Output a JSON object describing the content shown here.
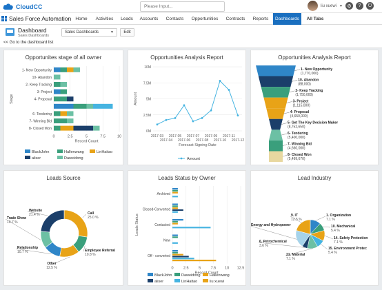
{
  "topbar": {
    "logo": "CloudCC",
    "search_placeholder": "Please Input...",
    "user_name": "liu xuewi"
  },
  "nav": {
    "app_name": "Sales Force Automation",
    "tabs": [
      "Home",
      "Activities",
      "Leads",
      "Accounts",
      "Contacts",
      "Opportunities",
      "Contracts",
      "Reports",
      "Dashboards",
      "All Tabs"
    ],
    "active": "Dashboards"
  },
  "dashboard": {
    "title": "Dashboard",
    "subtitle": "Sales Dashboards",
    "select_value": "Sales Dashboards",
    "edit_label": "Edit",
    "back_link": "<< Go to the dashboard list"
  },
  "colors": {
    "blue": "#2f86c8",
    "teal": "#3a9f7c",
    "orange": "#e8a317",
    "navy": "#1b3f6a",
    "green": "#6cc0a4",
    "light_blue": "#46b4e1",
    "nav_active": "#1a6fbf"
  },
  "panels": {
    "p1": {
      "title": "Opportunites stage of all owner"
    },
    "p2": {
      "title": "Opportunities Analysis Report"
    },
    "p3": {
      "title": "Opportunities Analysis Report"
    },
    "p4": {
      "title": "Leads Source"
    },
    "p5": {
      "title": "Leads Status by Owner"
    },
    "p6": {
      "title": "Lead Industry"
    }
  },
  "chart_data": [
    {
      "type": "bar",
      "orientation": "horizontal",
      "stacked": true,
      "title": "Opportunites stage of all owner",
      "xlabel": "Record Count",
      "ylabel": "Stage",
      "xlim": [
        0,
        10
      ],
      "xticks": [
        "0",
        "2.5",
        "5",
        "7.5",
        "10"
      ],
      "categories": [
        "1- New Opportunity",
        "10- Abandon",
        "2- Keep Tracking",
        "3- Project",
        "4- Proposal",
        "",
        "6- Tendering",
        "7- Winning Bid",
        "8- Closed Won"
      ],
      "series": [
        {
          "name": "BlackJohn",
          "values": [
            1,
            0,
            0,
            1,
            0,
            3,
            0,
            0,
            0
          ]
        },
        {
          "name": "Hallenwang",
          "values": [
            1,
            0,
            1,
            1,
            2,
            2,
            1,
            2,
            1
          ]
        },
        {
          "name": "LinHaitao",
          "values": [
            1,
            0,
            0,
            0,
            0,
            0,
            1,
            0,
            2
          ]
        },
        {
          "name": "aliser",
          "values": [
            0,
            0,
            0,
            0,
            1,
            0,
            0,
            0,
            3
          ]
        },
        {
          "name": "Daweidong",
          "values": [
            1,
            1,
            1,
            0,
            0,
            1,
            1,
            1,
            1
          ]
        }
      ],
      "extra_series": [
        {
          "name": "",
          "values": [
            0,
            0,
            0,
            0,
            0,
            3,
            0,
            0,
            0
          ]
        }
      ],
      "legend": "bottom"
    },
    {
      "type": "line",
      "title": "Opportunities Analysis Report",
      "xlabel": "Forecast Signing Date",
      "ylabel": "Amount",
      "x": [
        "2017-03",
        "2017-04",
        "2017-05",
        "2017-06",
        "2017-07",
        "2017-08",
        "2017-09",
        "2017-10",
        "2017-11",
        "2017-12"
      ],
      "xticks": [
        "2017-03",
        "2017-05",
        "2017-07",
        "2017-09",
        "2017-11",
        "2017-04",
        "2017-06",
        "2017-08",
        "2017-10",
        "2017-12"
      ],
      "series": [
        {
          "name": "Amount",
          "values": [
            1000000,
            1700000,
            2000000,
            4000000,
            1500000,
            2000000,
            3200000,
            7800000,
            6400000,
            2400000
          ]
        }
      ],
      "yticks": [
        "0M",
        "2.5M",
        "5M",
        "7.5M",
        "10M"
      ],
      "ylim": [
        0,
        10000000
      ],
      "legend": "bottom"
    },
    {
      "type": "funnel",
      "title": "Opportunities Analysis Report",
      "stages": [
        {
          "label": "1- New Opportunity",
          "value": "(1,770,000)",
          "color": "#2f86c8"
        },
        {
          "label": "10- Abandon",
          "value": "(88,000)",
          "color": "#1b3f6a"
        },
        {
          "label": "2- Keep Tracking",
          "value": "(1,750,000)",
          "color": "#3a9f7c"
        },
        {
          "label": "3- Project",
          "value": "(1,115,000)",
          "color": "#e8a317"
        },
        {
          "label": "4- Proposal",
          "value": "(4,650,000)",
          "color": "#e8a317"
        },
        {
          "label": "5- Get The Key Decision Maker",
          "value": "(8,752,650)",
          "color": "#1b3f6a"
        },
        {
          "label": "6- Tendering",
          "value": "(5,400,000)",
          "color": "#6cc0a4"
        },
        {
          "label": "7- Winning Bid",
          "value": "(4,660,000)",
          "color": "#3a9f7c"
        },
        {
          "label": "8- Closed Won",
          "value": "(5,499,670)",
          "color": "#e8d8a0"
        }
      ]
    },
    {
      "type": "pie",
      "donut": true,
      "title": "Leads Source",
      "slices": [
        {
          "label": "Call",
          "pct": "25.0 %",
          "value": 25.0,
          "color": "#e8a317"
        },
        {
          "label": "Employee Referral",
          "pct": "10.8 %",
          "value": 10.8,
          "color": "#3a9f7c"
        },
        {
          "label": "Other",
          "pct": "12.5 %",
          "value": 12.5,
          "color": "#e8a317"
        },
        {
          "label": "Relationship",
          "pct": "10.7 %",
          "value": 10.7,
          "color": "#2f86c8"
        },
        {
          "label": "Trade Show",
          "pct": "10.7 %",
          "value": 10.7,
          "color": "#6cc0a4"
        },
        {
          "label": "Website",
          "pct": "21.4 %",
          "value": 21.4,
          "color": "#1b3f6a"
        }
      ]
    },
    {
      "type": "bar",
      "orientation": "horizontal",
      "title": "Leads Status by Owner",
      "xlabel": "Record Count",
      "ylabel": "Leads Status",
      "xlim": [
        0,
        12.5
      ],
      "xticks": [
        "0",
        "2.5",
        "5",
        "7.5",
        "10",
        "12.5"
      ],
      "categories": [
        "Archived",
        "Closed-Converted",
        "Contacted",
        "New",
        "Off - converted"
      ],
      "series": [
        {
          "name": "BlackJohn",
          "values": [
            1,
            1,
            2,
            1,
            1
          ]
        },
        {
          "name": "Daweidong",
          "values": [
            1,
            1,
            1,
            1,
            1
          ]
        },
        {
          "name": "Hallenwang",
          "values": [
            1,
            1,
            1,
            0,
            2
          ]
        },
        {
          "name": "aliser",
          "values": [
            0,
            2,
            0,
            0,
            3
          ]
        },
        {
          "name": "LinHaitao",
          "values": [
            1,
            1,
            7,
            1,
            4
          ]
        },
        {
          "name": "liu xuewi",
          "values": [
            0,
            0,
            0,
            0,
            8
          ]
        }
      ],
      "legend": "bottom"
    },
    {
      "type": "pie",
      "title": "Lead Industry",
      "slices": [
        {
          "label": "1. Organization",
          "pct": "7.1 %",
          "value": 7.1,
          "color": "#2f86c8"
        },
        {
          "label": "10. Mechanical",
          "pct": "5.4 %",
          "value": 5.4,
          "color": "#3a9f7c"
        },
        {
          "label": "14. Safety Protection",
          "pct": "7.1 %",
          "value": 7.1,
          "color": "#e8a317"
        },
        {
          "label": "15. Environment Protec",
          "pct": "5.4 %",
          "value": 5.4,
          "color": "#46b4e1"
        },
        {
          "label": "21. Material",
          "pct": "7.1 %",
          "value": 7.1,
          "color": "#6cc0a4"
        },
        {
          "label": "6. Petrochemical",
          "pct": "3.6 %",
          "value": 3.6,
          "color": "#1b3f6a"
        },
        {
          "label": "Energy and Hydropower",
          "pct": "",
          "value": 12,
          "color": "#a6d3ea"
        },
        {
          "label": "9. IT",
          "pct": "12.5 %",
          "value": 12.5,
          "color": "#e8a317"
        }
      ]
    }
  ]
}
